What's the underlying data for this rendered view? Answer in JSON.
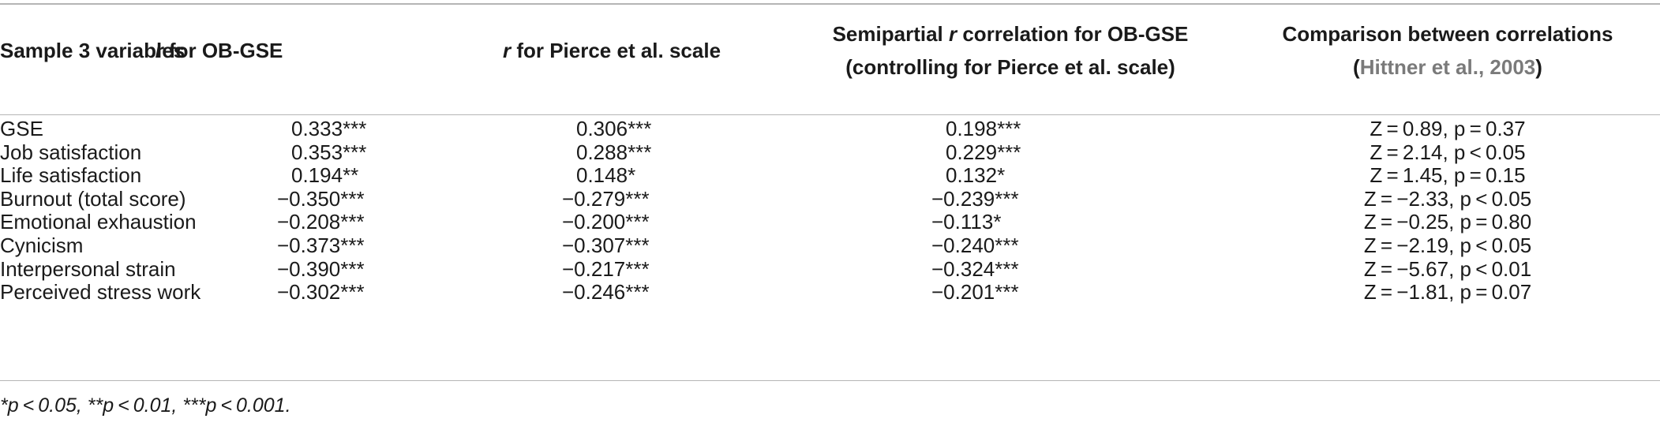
{
  "table": {
    "headers": {
      "variables": "Sample 3 variables",
      "ob_r_italic": "r",
      "ob_rest": " for OB-GSE",
      "pierce_r_italic": "r",
      "pierce_rest": " for Pierce et al. scale",
      "semi_line1_a": "Semipartial ",
      "semi_line1_r": "r",
      "semi_line1_b": " correlation for OB-GSE",
      "semi_line2": "(controlling for Pierce et al. scale)",
      "comp_line1": "Comparison between correlations",
      "comp_line2_open": "(",
      "comp_line2_cite": "Hittner et al., 2003",
      "comp_line2_close": ")"
    },
    "rows": [
      {
        "variable": "GSE",
        "ob": "0.333***",
        "pierce": "0.306***",
        "semi": "0.198***",
        "comp": "Z = 0.89, p = 0.37"
      },
      {
        "variable": "Job satisfaction",
        "ob": "0.353***",
        "pierce": "0.288***",
        "semi": "0.229***",
        "comp": "Z = 2.14, p < 0.05"
      },
      {
        "variable": "Life satisfaction",
        "ob": "0.194**",
        "pierce": "0.148*",
        "semi": "0.132*",
        "comp": "Z = 1.45, p = 0.15"
      },
      {
        "variable": "Burnout (total score)",
        "ob": "−0.350***",
        "pierce": "−0.279***",
        "semi": "−0.239***",
        "comp": "Z = −2.33, p < 0.05"
      },
      {
        "variable": "Emotional exhaustion",
        "ob": "−0.208***",
        "pierce": "−0.200***",
        "semi": "−0.113*",
        "comp": "Z = −0.25, p = 0.80"
      },
      {
        "variable": "Cynicism",
        "ob": "−0.373***",
        "pierce": "−0.307***",
        "semi": "−0.240***",
        "comp": "Z = −2.19, p < 0.05"
      },
      {
        "variable": "Interpersonal strain",
        "ob": "−0.390***",
        "pierce": "−0.217***",
        "semi": "−0.324***",
        "comp": "Z = −5.67, p < 0.01"
      },
      {
        "variable": "Perceived stress work",
        "ob": "−0.302***",
        "pierce": "−0.246***",
        "semi": "−0.201***",
        "comp": "Z = −1.81, p = 0.07"
      }
    ],
    "footnote": "*p < 0.05, **p < 0.01, ***p < 0.001."
  }
}
